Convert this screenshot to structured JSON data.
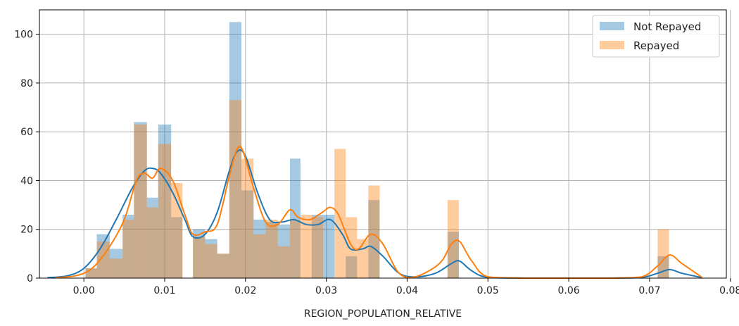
{
  "chart_data": {
    "type": "bar",
    "xlabel": "REGION_POPULATION_RELATIVE",
    "ylabel": "",
    "xlim": [
      -0.0055,
      0.0795
    ],
    "ylim": [
      0,
      110
    ],
    "xticks": [
      0.0,
      0.01,
      0.02,
      0.03,
      0.04,
      0.05,
      0.06,
      0.07,
      0.08
    ],
    "xtick_labels": [
      "0.00",
      "0.01",
      "0.02",
      "0.03",
      "0.04",
      "0.05",
      "0.06",
      "0.07",
      "0.08"
    ],
    "yticks": [
      0,
      20,
      40,
      60,
      80,
      100
    ],
    "ytick_labels": [
      "0",
      "20",
      "40",
      "60",
      "80",
      "100"
    ],
    "grid": true,
    "legend_position": "top-right",
    "series": [
      {
        "name": "Not Repayed",
        "color": "#1f77b4",
        "bars": [
          {
            "x0": 0.0002,
            "x1": 0.0016,
            "y": 4
          },
          {
            "x0": 0.0016,
            "x1": 0.0032,
            "y": 18
          },
          {
            "x0": 0.0032,
            "x1": 0.0048,
            "y": 12
          },
          {
            "x0": 0.0048,
            "x1": 0.0062,
            "y": 26
          },
          {
            "x0": 0.0062,
            "x1": 0.0078,
            "y": 64
          },
          {
            "x0": 0.0078,
            "x1": 0.0092,
            "y": 33
          },
          {
            "x0": 0.0092,
            "x1": 0.0108,
            "y": 63
          },
          {
            "x0": 0.0108,
            "x1": 0.0122,
            "y": 25
          },
          {
            "x0": 0.0135,
            "x1": 0.015,
            "y": 20
          },
          {
            "x0": 0.015,
            "x1": 0.0165,
            "y": 16
          },
          {
            "x0": 0.0165,
            "x1": 0.018,
            "y": 10
          },
          {
            "x0": 0.018,
            "x1": 0.0195,
            "y": 105
          },
          {
            "x0": 0.0195,
            "x1": 0.021,
            "y": 36
          },
          {
            "x0": 0.021,
            "x1": 0.0225,
            "y": 24
          },
          {
            "x0": 0.0225,
            "x1": 0.024,
            "y": 23
          },
          {
            "x0": 0.024,
            "x1": 0.0255,
            "y": 22
          },
          {
            "x0": 0.0255,
            "x1": 0.0268,
            "y": 49
          },
          {
            "x0": 0.0282,
            "x1": 0.0296,
            "y": 26
          },
          {
            "x0": 0.0296,
            "x1": 0.031,
            "y": 26
          },
          {
            "x0": 0.0324,
            "x1": 0.0338,
            "y": 9
          },
          {
            "x0": 0.0352,
            "x1": 0.0366,
            "y": 32
          },
          {
            "x0": 0.045,
            "x1": 0.0464,
            "y": 19
          },
          {
            "x0": 0.071,
            "x1": 0.0724,
            "y": 9
          }
        ],
        "kde": [
          [
            -0.0045,
            0.2
          ],
          [
            -0.002,
            1
          ],
          [
            0.0,
            4
          ],
          [
            0.002,
            12
          ],
          [
            0.004,
            24
          ],
          [
            0.006,
            37
          ],
          [
            0.0075,
            44
          ],
          [
            0.0085,
            45
          ],
          [
            0.0095,
            43
          ],
          [
            0.011,
            35
          ],
          [
            0.0125,
            24
          ],
          [
            0.0135,
            17
          ],
          [
            0.015,
            18
          ],
          [
            0.0165,
            27
          ],
          [
            0.018,
            44
          ],
          [
            0.019,
            52
          ],
          [
            0.02,
            50
          ],
          [
            0.0215,
            35
          ],
          [
            0.023,
            24
          ],
          [
            0.0245,
            23
          ],
          [
            0.026,
            24
          ],
          [
            0.0275,
            22
          ],
          [
            0.029,
            22
          ],
          [
            0.0305,
            24
          ],
          [
            0.032,
            18
          ],
          [
            0.033,
            12
          ],
          [
            0.0345,
            12
          ],
          [
            0.0355,
            13
          ],
          [
            0.037,
            9
          ],
          [
            0.039,
            2
          ],
          [
            0.041,
            0.5
          ],
          [
            0.0435,
            2
          ],
          [
            0.0455,
            6
          ],
          [
            0.0465,
            7
          ],
          [
            0.048,
            3
          ],
          [
            0.05,
            0.3
          ],
          [
            0.055,
            0
          ],
          [
            0.06,
            0
          ],
          [
            0.065,
            0
          ],
          [
            0.069,
            0.3
          ],
          [
            0.071,
            2
          ],
          [
            0.0725,
            3.5
          ],
          [
            0.074,
            2
          ],
          [
            0.0765,
            0.2
          ]
        ]
      },
      {
        "name": "Repayed",
        "color": "#ff7f0e",
        "bars": [
          {
            "x0": 0.0002,
            "x1": 0.0016,
            "y": 4
          },
          {
            "x0": 0.0016,
            "x1": 0.0032,
            "y": 15
          },
          {
            "x0": 0.0032,
            "x1": 0.0048,
            "y": 8
          },
          {
            "x0": 0.0048,
            "x1": 0.0062,
            "y": 24
          },
          {
            "x0": 0.0062,
            "x1": 0.0078,
            "y": 63
          },
          {
            "x0": 0.0078,
            "x1": 0.0092,
            "y": 29
          },
          {
            "x0": 0.0092,
            "x1": 0.0108,
            "y": 55
          },
          {
            "x0": 0.0108,
            "x1": 0.0122,
            "y": 39
          },
          {
            "x0": 0.0135,
            "x1": 0.015,
            "y": 17
          },
          {
            "x0": 0.015,
            "x1": 0.0165,
            "y": 14
          },
          {
            "x0": 0.0165,
            "x1": 0.018,
            "y": 10
          },
          {
            "x0": 0.018,
            "x1": 0.0195,
            "y": 73
          },
          {
            "x0": 0.0195,
            "x1": 0.021,
            "y": 49
          },
          {
            "x0": 0.021,
            "x1": 0.0225,
            "y": 18
          },
          {
            "x0": 0.0225,
            "x1": 0.024,
            "y": 24
          },
          {
            "x0": 0.024,
            "x1": 0.0255,
            "y": 13
          },
          {
            "x0": 0.0255,
            "x1": 0.0268,
            "y": 24
          },
          {
            "x0": 0.0268,
            "x1": 0.0282,
            "y": 26
          },
          {
            "x0": 0.0282,
            "x1": 0.0296,
            "y": 25
          },
          {
            "x0": 0.031,
            "x1": 0.0324,
            "y": 53
          },
          {
            "x0": 0.0324,
            "x1": 0.0338,
            "y": 25
          },
          {
            "x0": 0.0338,
            "x1": 0.0352,
            "y": 16
          },
          {
            "x0": 0.0352,
            "x1": 0.0366,
            "y": 38
          },
          {
            "x0": 0.045,
            "x1": 0.0464,
            "y": 32
          },
          {
            "x0": 0.071,
            "x1": 0.0724,
            "y": 20
          }
        ],
        "kde": [
          [
            -0.0035,
            0.2
          ],
          [
            -0.001,
            1
          ],
          [
            0.001,
            4
          ],
          [
            0.003,
            12
          ],
          [
            0.005,
            24
          ],
          [
            0.0065,
            40
          ],
          [
            0.0075,
            43
          ],
          [
            0.0085,
            41
          ],
          [
            0.0095,
            45
          ],
          [
            0.011,
            40
          ],
          [
            0.0125,
            26
          ],
          [
            0.0135,
            18
          ],
          [
            0.015,
            19
          ],
          [
            0.0165,
            22
          ],
          [
            0.018,
            42
          ],
          [
            0.019,
            53
          ],
          [
            0.0197,
            52
          ],
          [
            0.021,
            37
          ],
          [
            0.0225,
            23
          ],
          [
            0.024,
            22
          ],
          [
            0.0255,
            28
          ],
          [
            0.0265,
            25
          ],
          [
            0.028,
            24
          ],
          [
            0.0295,
            27
          ],
          [
            0.0305,
            29
          ],
          [
            0.0315,
            26
          ],
          [
            0.033,
            14
          ],
          [
            0.034,
            12
          ],
          [
            0.0355,
            18
          ],
          [
            0.037,
            14
          ],
          [
            0.039,
            2
          ],
          [
            0.041,
            0.5
          ],
          [
            0.044,
            6
          ],
          [
            0.0455,
            14
          ],
          [
            0.0465,
            15
          ],
          [
            0.048,
            7
          ],
          [
            0.05,
            0.5
          ],
          [
            0.055,
            0
          ],
          [
            0.06,
            0
          ],
          [
            0.065,
            0
          ],
          [
            0.069,
            0.5
          ],
          [
            0.071,
            5
          ],
          [
            0.0725,
            9.5
          ],
          [
            0.074,
            6
          ],
          [
            0.0765,
            0.3
          ]
        ]
      }
    ]
  }
}
